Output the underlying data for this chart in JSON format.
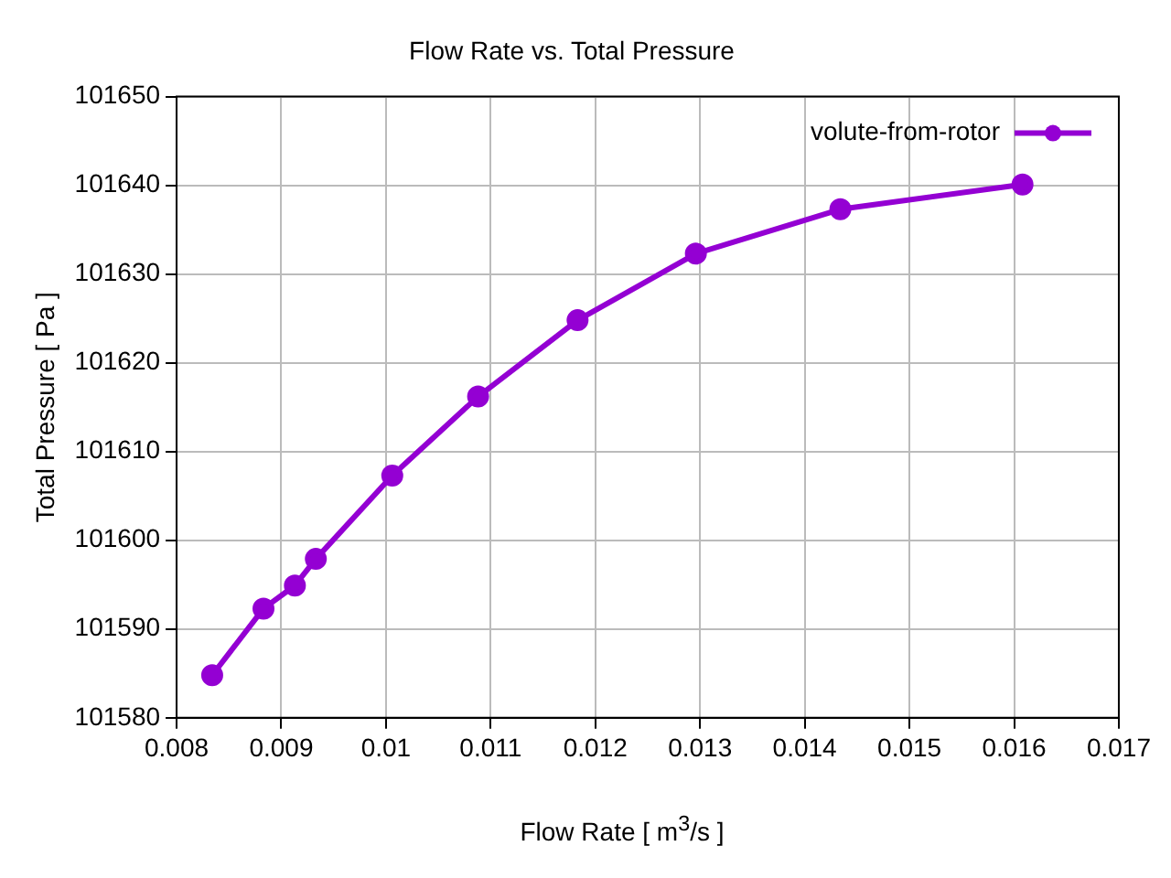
{
  "chart_data": {
    "type": "line",
    "title": "Flow Rate vs. Total Pressure",
    "xlabel": "Flow Rate [ m$^{3}$/s ]",
    "ylabel": "Total Pressure [ Pa ]",
    "x": [
      0.00834,
      0.00883,
      0.00913,
      0.00933,
      0.01006,
      0.01088,
      0.01183,
      0.01296,
      0.01434,
      0.01608
    ],
    "series": [
      {
        "name": "volute-from-rotor",
        "color": "#9400d3",
        "values": [
          101584.8,
          101592.3,
          101594.9,
          101597.9,
          101607.3,
          101616.2,
          101624.8,
          101632.3,
          101637.3,
          101640.1
        ]
      }
    ],
    "xlim": [
      0.008,
      0.017
    ],
    "xticks": [
      0.008,
      0.009,
      0.01,
      0.011,
      0.012,
      0.013,
      0.014,
      0.015,
      0.016,
      0.017
    ],
    "ylim": [
      101580,
      101650
    ],
    "yticks": [
      101580,
      101590,
      101600,
      101610,
      101620,
      101630,
      101640,
      101650
    ],
    "grid": true,
    "legend": "top right",
    "marker": "circle",
    "line_style": "solid"
  }
}
